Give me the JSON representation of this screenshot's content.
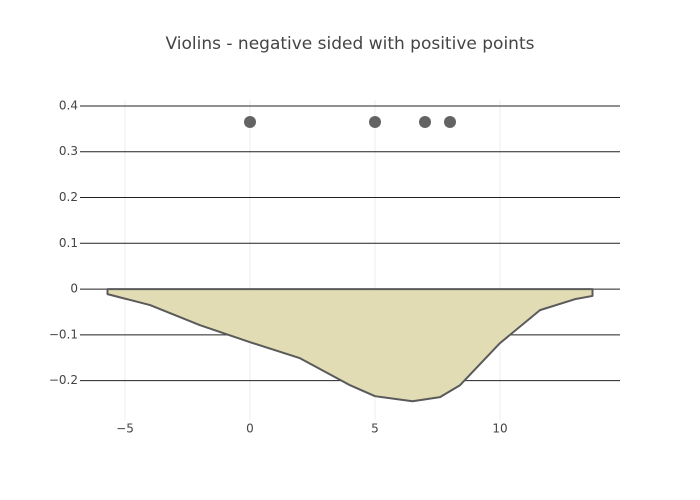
{
  "chart_data": {
    "type": "violin",
    "title": "Violins - negative sided with positive points",
    "violin": {
      "x": [
        -5.7,
        -4,
        -2,
        0,
        2,
        4,
        5,
        6.5,
        7.6,
        8.4,
        10,
        11.6,
        13,
        13.7
      ],
      "values": [
        -0.011,
        -0.035,
        -0.079,
        -0.116,
        -0.151,
        -0.21,
        -0.234,
        -0.245,
        -0.236,
        -0.21,
        -0.118,
        -0.046,
        -0.022,
        -0.015
      ],
      "fill": "#e2dcb4",
      "color": "#5a5a5a"
    },
    "points": {
      "x": [
        0,
        5,
        7,
        8
      ],
      "y": [
        0.365,
        0.365,
        0.365,
        0.365
      ],
      "color": "#636363"
    },
    "xlim": [
      -6.8,
      14.8
    ],
    "ylim": [
      -0.286,
      0.413
    ],
    "xticks": [
      {
        "value": -5,
        "label": "−5"
      },
      0,
      5,
      10
    ],
    "yticks": [
      {
        "value": -0.2,
        "label": "−0.2"
      },
      {
        "value": -0.1,
        "label": "−0.1"
      },
      0,
      0.1,
      0.2,
      0.3,
      0.4
    ],
    "grid": true
  }
}
